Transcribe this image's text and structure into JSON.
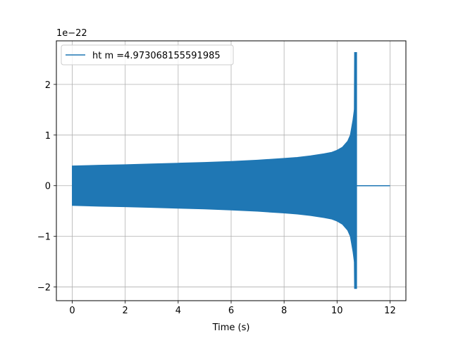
{
  "chart_data": {
    "type": "line",
    "xlabel": "Time (s)",
    "ylabel": "",
    "offset_text": "1e−22",
    "xlim": [
      -0.6,
      12.6
    ],
    "ylim": [
      -2.27,
      2.86
    ],
    "x_ticks": [
      0,
      2,
      4,
      6,
      8,
      10,
      12
    ],
    "x_tick_labels": [
      "0",
      "2",
      "4",
      "6",
      "8",
      "10",
      "12"
    ],
    "y_ticks": [
      -2,
      -1,
      0,
      1,
      2
    ],
    "y_tick_labels": [
      "−2",
      "−1",
      "0",
      "1",
      "2"
    ],
    "grid": true,
    "legend_position": "top-left",
    "series": [
      {
        "name": "ht m =4.973068155591985",
        "color": "#1f77b4",
        "envelope": {
          "x": [
            0,
            1,
            2,
            3,
            4,
            5,
            6,
            7,
            8,
            8.5,
            9,
            9.5,
            9.8,
            10.0,
            10.2,
            10.4,
            10.5,
            10.6,
            10.65
          ],
          "upper": [
            0.39,
            0.405,
            0.415,
            0.43,
            0.445,
            0.46,
            0.48,
            0.505,
            0.54,
            0.56,
            0.59,
            0.63,
            0.66,
            0.7,
            0.76,
            0.88,
            1.0,
            1.3,
            1.5
          ],
          "lower": [
            -0.39,
            -0.405,
            -0.415,
            -0.43,
            -0.445,
            -0.46,
            -0.48,
            -0.505,
            -0.54,
            -0.56,
            -0.59,
            -0.63,
            -0.66,
            -0.7,
            -0.76,
            -0.88,
            -1.0,
            -1.3,
            -1.5
          ]
        },
        "merger_spike": {
          "x": 10.7,
          "max": 2.63,
          "min": -2.03
        },
        "ringdown_flat": {
          "x_start": 10.72,
          "x_end": 12.0,
          "value": 0.0
        },
        "start_point": {
          "x": 0,
          "y": -0.38
        }
      }
    ]
  }
}
